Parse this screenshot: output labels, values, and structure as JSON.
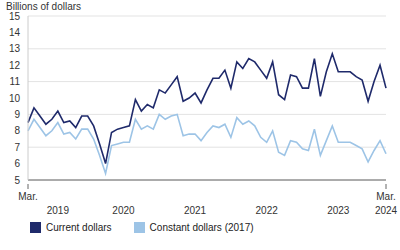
{
  "chart_data": {
    "type": "line",
    "y_label": "Billions of dollars",
    "categories": [
      "Mar.",
      null,
      null,
      null,
      null,
      null,
      null,
      null,
      null,
      null,
      null,
      null,
      null,
      null,
      null,
      null,
      null,
      null,
      null,
      null,
      null,
      null,
      null,
      null,
      null,
      null,
      null,
      null,
      null,
      null,
      null,
      null,
      null,
      null,
      null,
      null,
      null,
      null,
      null,
      null,
      null,
      null,
      null,
      null,
      null,
      null,
      null,
      null,
      null,
      null,
      null,
      null,
      null,
      null,
      null,
      null,
      null,
      null,
      null,
      null,
      "Mar."
    ],
    "category_groups": [
      null,
      null,
      null,
      null,
      null,
      "2019",
      null,
      null,
      null,
      null,
      null,
      null,
      null,
      null,
      null,
      null,
      "2020",
      null,
      null,
      null,
      null,
      null,
      null,
      null,
      null,
      null,
      null,
      null,
      "2021",
      null,
      null,
      null,
      null,
      null,
      null,
      null,
      null,
      null,
      null,
      null,
      "2022",
      null,
      null,
      null,
      null,
      null,
      null,
      null,
      null,
      null,
      null,
      null,
      "2023",
      null,
      null,
      null,
      null,
      null,
      null,
      null,
      "2024"
    ],
    "series": [
      {
        "name": "Current dollars",
        "color": "#1f2a6b",
        "values": [
          8.5,
          9.4,
          8.9,
          8.4,
          8.7,
          9.2,
          8.5,
          8.6,
          8.2,
          8.9,
          8.9,
          8.3,
          7.2,
          6.0,
          7.9,
          8.1,
          8.2,
          8.3,
          9.9,
          9.2,
          9.6,
          9.4,
          10.5,
          10.3,
          10.8,
          11.3,
          9.8,
          10.0,
          10.3,
          9.7,
          10.5,
          11.2,
          11.2,
          11.7,
          10.6,
          12.2,
          11.8,
          12.4,
          12.2,
          11.7,
          11.2,
          12.2,
          10.2,
          9.9,
          11.4,
          11.3,
          10.6,
          10.6,
          12.4,
          10.1,
          11.6,
          12.7,
          11.6,
          11.6,
          11.6,
          11.3,
          11.1,
          9.8,
          11.0,
          12.0,
          10.6
        ]
      },
      {
        "name": "Constant dollars (2017)",
        "color": "#9dc4e6",
        "values": [
          8.0,
          8.7,
          8.2,
          7.7,
          8.0,
          8.5,
          7.8,
          7.9,
          7.5,
          8.1,
          8.1,
          7.5,
          6.5,
          5.4,
          7.1,
          7.2,
          7.3,
          7.3,
          8.7,
          8.1,
          8.3,
          8.1,
          9.0,
          8.7,
          8.9,
          9.0,
          7.7,
          7.8,
          7.8,
          7.4,
          7.9,
          8.3,
          8.2,
          8.4,
          7.6,
          8.8,
          8.4,
          8.6,
          8.3,
          7.6,
          7.3,
          8.0,
          6.7,
          6.5,
          7.4,
          7.3,
          6.9,
          6.8,
          8.1,
          6.5,
          7.4,
          8.3,
          7.3,
          7.3,
          7.3,
          7.1,
          6.9,
          6.1,
          6.8,
          7.4,
          6.6
        ]
      }
    ],
    "ylim": [
      5,
      15
    ],
    "yticks": [
      5,
      6,
      7,
      8,
      9,
      10,
      11,
      12,
      13,
      14,
      15
    ],
    "grid": true,
    "legend": "bottom"
  }
}
